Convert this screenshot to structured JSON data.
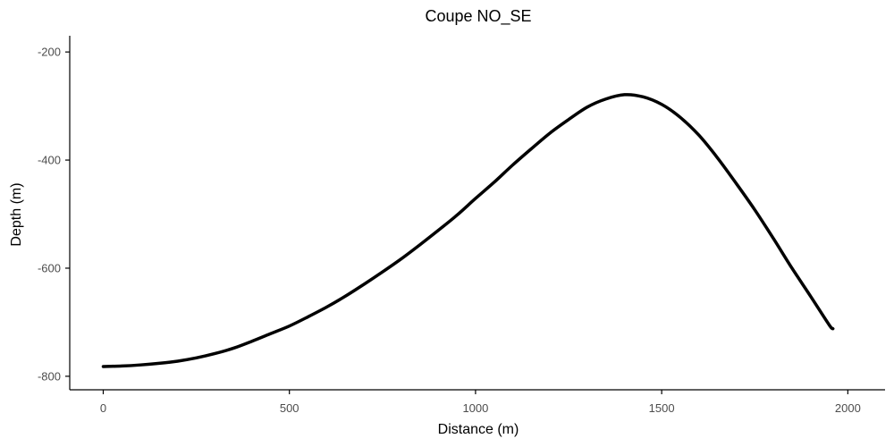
{
  "chart_data": {
    "type": "line",
    "title": "Coupe NO_SE",
    "xlabel": "Distance (m)",
    "ylabel": "Depth (m)",
    "xlim": [
      -90,
      2100
    ],
    "ylim": [
      -825,
      -170
    ],
    "x_ticks": [
      0,
      500,
      1000,
      1500,
      2000
    ],
    "y_ticks": [
      -200,
      -400,
      -600,
      -800
    ],
    "x_tick_labels": [
      "0",
      "500",
      "1000",
      "1500",
      "2000"
    ],
    "y_tick_labels": [
      "-200",
      "-400",
      "-600",
      "-800"
    ],
    "grid": false,
    "legend": "none",
    "line_color": "#000000",
    "series": [
      {
        "x": [
          0,
          50,
          100,
          150,
          200,
          250,
          300,
          350,
          400,
          450,
          500,
          550,
          600,
          650,
          700,
          750,
          800,
          850,
          900,
          950,
          1000,
          1050,
          1100,
          1150,
          1200,
          1250,
          1300,
          1350,
          1400,
          1450,
          1500,
          1550,
          1600,
          1650,
          1700,
          1750,
          1800,
          1850,
          1900,
          1950,
          1960
        ],
        "y": [
          -782,
          -781,
          -779,
          -776,
          -772,
          -766,
          -758,
          -748,
          -735,
          -721,
          -707,
          -690,
          -672,
          -652,
          -630,
          -607,
          -583,
          -557,
          -530,
          -502,
          -471,
          -441,
          -409,
          -379,
          -350,
          -325,
          -302,
          -287,
          -279,
          -283,
          -297,
          -321,
          -354,
          -396,
          -443,
          -492,
          -545,
          -600,
          -652,
          -705,
          -712
        ]
      }
    ]
  }
}
